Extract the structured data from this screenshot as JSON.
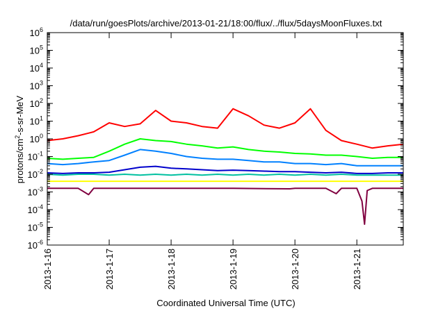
{
  "chart_data": {
    "type": "line",
    "title": "/data/run/goesPlots/archive/2013-01-21/18:00/flux/../flux/5daysMoonFluxes.txt",
    "xlabel": "Coordinated Universal Time (UTC)",
    "ylabel_parts": [
      "protons/cm",
      "2",
      "-s-sr-MeV"
    ],
    "yscale": "log",
    "ylim": [
      1e-06,
      1000000.0
    ],
    "xlim": [
      "2013-01-16T00:00",
      "2013-01-21T18:00"
    ],
    "grid": false,
    "legend": "none",
    "x_ticks": [
      "2013-1-16",
      "2013-1-17",
      "2013-1-18",
      "2013-1-19",
      "2013-1-20",
      "2013-1-21"
    ],
    "y_ticks": [
      {
        "base": "10",
        "exp": "-6"
      },
      {
        "base": "10",
        "exp": "-5"
      },
      {
        "base": "10",
        "exp": "-4"
      },
      {
        "base": "10",
        "exp": "-3"
      },
      {
        "base": "10",
        "exp": "-2"
      },
      {
        "base": "10",
        "exp": "-1"
      },
      {
        "base": "10",
        "exp": "0"
      },
      {
        "base": "10",
        "exp": "1"
      },
      {
        "base": "10",
        "exp": "2"
      },
      {
        "base": "10",
        "exp": "3"
      },
      {
        "base": "10",
        "exp": "4"
      },
      {
        "base": "10",
        "exp": "5"
      },
      {
        "base": "10",
        "exp": "6"
      }
    ],
    "series": [
      {
        "color": "#ff0000",
        "x": [
          "2013-01-16T00:00",
          "2013-01-16T06:00",
          "2013-01-16T12:00",
          "2013-01-16T18:00",
          "2013-01-17T00:00",
          "2013-01-17T06:00",
          "2013-01-17T12:00",
          "2013-01-17T18:00",
          "2013-01-18T00:00",
          "2013-01-18T06:00",
          "2013-01-18T12:00",
          "2013-01-18T18:00",
          "2013-01-19T00:00",
          "2013-01-19T06:00",
          "2013-01-19T12:00",
          "2013-01-19T18:00",
          "2013-01-20T00:00",
          "2013-01-20T06:00",
          "2013-01-20T12:00",
          "2013-01-20T18:00",
          "2013-01-21T00:00",
          "2013-01-21T06:00",
          "2013-01-21T12:00",
          "2013-01-21T18:00"
        ],
        "values": [
          0.8,
          1.0,
          1.5,
          2.5,
          8,
          5,
          7,
          40,
          10,
          8,
          5,
          4,
          50,
          20,
          6,
          4,
          8,
          50,
          3,
          0.8,
          0.5,
          0.3,
          0.4,
          0.5
        ]
      },
      {
        "color": "#00ff00",
        "x": [
          "2013-01-16T00:00",
          "2013-01-16T06:00",
          "2013-01-16T12:00",
          "2013-01-16T18:00",
          "2013-01-17T00:00",
          "2013-01-17T06:00",
          "2013-01-17T12:00",
          "2013-01-17T18:00",
          "2013-01-18T00:00",
          "2013-01-18T06:00",
          "2013-01-18T12:00",
          "2013-01-18T18:00",
          "2013-01-19T00:00",
          "2013-01-19T06:00",
          "2013-01-19T12:00",
          "2013-01-19T18:00",
          "2013-01-20T00:00",
          "2013-01-20T06:00",
          "2013-01-20T12:00",
          "2013-01-20T18:00",
          "2013-01-21T00:00",
          "2013-01-21T06:00",
          "2013-01-21T12:00",
          "2013-01-21T18:00"
        ],
        "values": [
          0.08,
          0.07,
          0.08,
          0.09,
          0.2,
          0.5,
          1.0,
          0.8,
          0.7,
          0.5,
          0.4,
          0.3,
          0.35,
          0.25,
          0.2,
          0.18,
          0.15,
          0.14,
          0.12,
          0.12,
          0.1,
          0.08,
          0.09,
          0.09
        ]
      },
      {
        "color": "#0080ff",
        "x": [
          "2013-01-16T00:00",
          "2013-01-16T06:00",
          "2013-01-16T12:00",
          "2013-01-16T18:00",
          "2013-01-17T00:00",
          "2013-01-17T06:00",
          "2013-01-17T12:00",
          "2013-01-17T18:00",
          "2013-01-18T00:00",
          "2013-01-18T06:00",
          "2013-01-18T12:00",
          "2013-01-18T18:00",
          "2013-01-19T00:00",
          "2013-01-19T06:00",
          "2013-01-19T12:00",
          "2013-01-19T18:00",
          "2013-01-20T00:00",
          "2013-01-20T06:00",
          "2013-01-20T12:00",
          "2013-01-20T18:00",
          "2013-01-21T00:00",
          "2013-01-21T06:00",
          "2013-01-21T12:00",
          "2013-01-21T18:00"
        ],
        "values": [
          0.04,
          0.035,
          0.04,
          0.05,
          0.06,
          0.12,
          0.25,
          0.2,
          0.15,
          0.1,
          0.08,
          0.07,
          0.07,
          0.06,
          0.05,
          0.05,
          0.04,
          0.04,
          0.035,
          0.04,
          0.03,
          0.03,
          0.03,
          0.03
        ]
      },
      {
        "color": "#0000cc",
        "x": [
          "2013-01-16T00:00",
          "2013-01-16T06:00",
          "2013-01-16T12:00",
          "2013-01-16T18:00",
          "2013-01-17T00:00",
          "2013-01-17T06:00",
          "2013-01-17T12:00",
          "2013-01-17T18:00",
          "2013-01-18T00:00",
          "2013-01-18T06:00",
          "2013-01-18T12:00",
          "2013-01-18T18:00",
          "2013-01-19T00:00",
          "2013-01-19T06:00",
          "2013-01-19T12:00",
          "2013-01-19T18:00",
          "2013-01-20T00:00",
          "2013-01-20T06:00",
          "2013-01-20T12:00",
          "2013-01-20T18:00",
          "2013-01-21T00:00",
          "2013-01-21T06:00",
          "2013-01-21T12:00",
          "2013-01-21T18:00"
        ],
        "values": [
          0.012,
          0.011,
          0.012,
          0.012,
          0.013,
          0.018,
          0.025,
          0.028,
          0.022,
          0.02,
          0.018,
          0.016,
          0.017,
          0.016,
          0.015,
          0.014,
          0.014,
          0.013,
          0.012,
          0.013,
          0.011,
          0.011,
          0.012,
          0.012
        ]
      },
      {
        "color": "#00c0a0",
        "x": [
          "2013-01-16T00:00",
          "2013-01-16T06:00",
          "2013-01-16T12:00",
          "2013-01-16T18:00",
          "2013-01-17T00:00",
          "2013-01-17T06:00",
          "2013-01-17T12:00",
          "2013-01-17T18:00",
          "2013-01-18T00:00",
          "2013-01-18T06:00",
          "2013-01-18T12:00",
          "2013-01-18T18:00",
          "2013-01-19T00:00",
          "2013-01-19T06:00",
          "2013-01-19T12:00",
          "2013-01-19T18:00",
          "2013-01-20T00:00",
          "2013-01-20T06:00",
          "2013-01-20T12:00",
          "2013-01-20T18:00",
          "2013-01-21T00:00",
          "2013-01-21T06:00",
          "2013-01-21T12:00",
          "2013-01-21T18:00"
        ],
        "values": [
          0.01,
          0.009,
          0.01,
          0.01,
          0.009,
          0.01,
          0.009,
          0.01,
          0.009,
          0.01,
          0.009,
          0.01,
          0.009,
          0.01,
          0.009,
          0.01,
          0.009,
          0.01,
          0.009,
          0.01,
          0.009,
          0.009,
          0.009,
          0.009
        ]
      },
      {
        "color": "#ffff00",
        "x": [
          "2013-01-16T00:00",
          "2013-01-17T00:00",
          "2013-01-18T00:00",
          "2013-01-19T00:00",
          "2013-01-20T00:00",
          "2013-01-21T00:00",
          "2013-01-21T18:00"
        ],
        "values": [
          0.004,
          0.004,
          0.004,
          0.004,
          0.004,
          0.004,
          0.004
        ]
      },
      {
        "color": "#800040",
        "x": [
          "2013-01-16T00:00",
          "2013-01-16T12:00",
          "2013-01-16T16:00",
          "2013-01-16T18:00",
          "2013-01-17T00:00",
          "2013-01-18T00:00",
          "2013-01-19T00:00",
          "2013-01-19T22:00",
          "2013-01-20T00:00",
          "2013-01-20T12:00",
          "2013-01-20T16:00",
          "2013-01-20T18:00",
          "2013-01-21T00:00",
          "2013-01-21T02:00",
          "2013-01-21T03:00",
          "2013-01-21T04:00",
          "2013-01-21T06:00",
          "2013-01-21T18:00"
        ],
        "values": [
          0.0016,
          0.0016,
          0.0007,
          0.0016,
          0.0016,
          0.0016,
          0.0016,
          0.0015,
          0.0016,
          0.0016,
          0.0008,
          0.0016,
          0.0016,
          0.0003,
          1.5e-05,
          0.0012,
          0.0016,
          0.0016
        ]
      }
    ]
  }
}
